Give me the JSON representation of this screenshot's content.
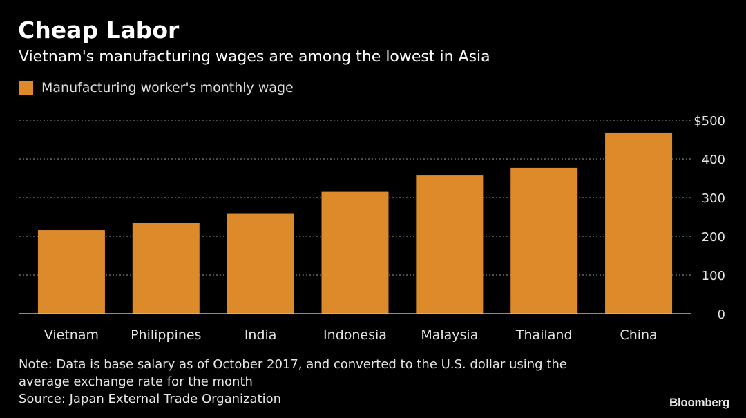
{
  "header": {
    "title": "Cheap Labor",
    "subtitle": "Vietnam's manufacturing wages are among the lowest in Asia"
  },
  "footer": {
    "note_line1": "Note: Data is base salary as of October 2017, and converted to the U.S. dollar using the",
    "note_line2": "average exchange rate for the month",
    "source": "Source: Japan External Trade Organization",
    "brand": "Bloomberg"
  },
  "colors": {
    "bar": "#dd8a2a",
    "background": "#000000",
    "grid": "#7a7a7a"
  },
  "chart_data": {
    "type": "bar",
    "title": "Cheap Labor",
    "subtitle": "Vietnam's manufacturing wages are among the lowest in Asia",
    "categories": [
      "Vietnam",
      "Philippines",
      "India",
      "Indonesia",
      "Malaysia",
      "Thailand",
      "China"
    ],
    "series": [
      {
        "name": "Manufacturing worker's monthly wage",
        "values": [
          216,
          234,
          258,
          315,
          357,
          377,
          468
        ]
      }
    ],
    "xlabel": "",
    "ylabel": "",
    "ylim": [
      0,
      500
    ],
    "yticks": [
      0,
      100,
      200,
      300,
      400,
      500
    ],
    "ytick_labels": [
      "0",
      "100",
      "200",
      "300",
      "400",
      "$500"
    ],
    "grid": true,
    "legend": "top-left"
  }
}
